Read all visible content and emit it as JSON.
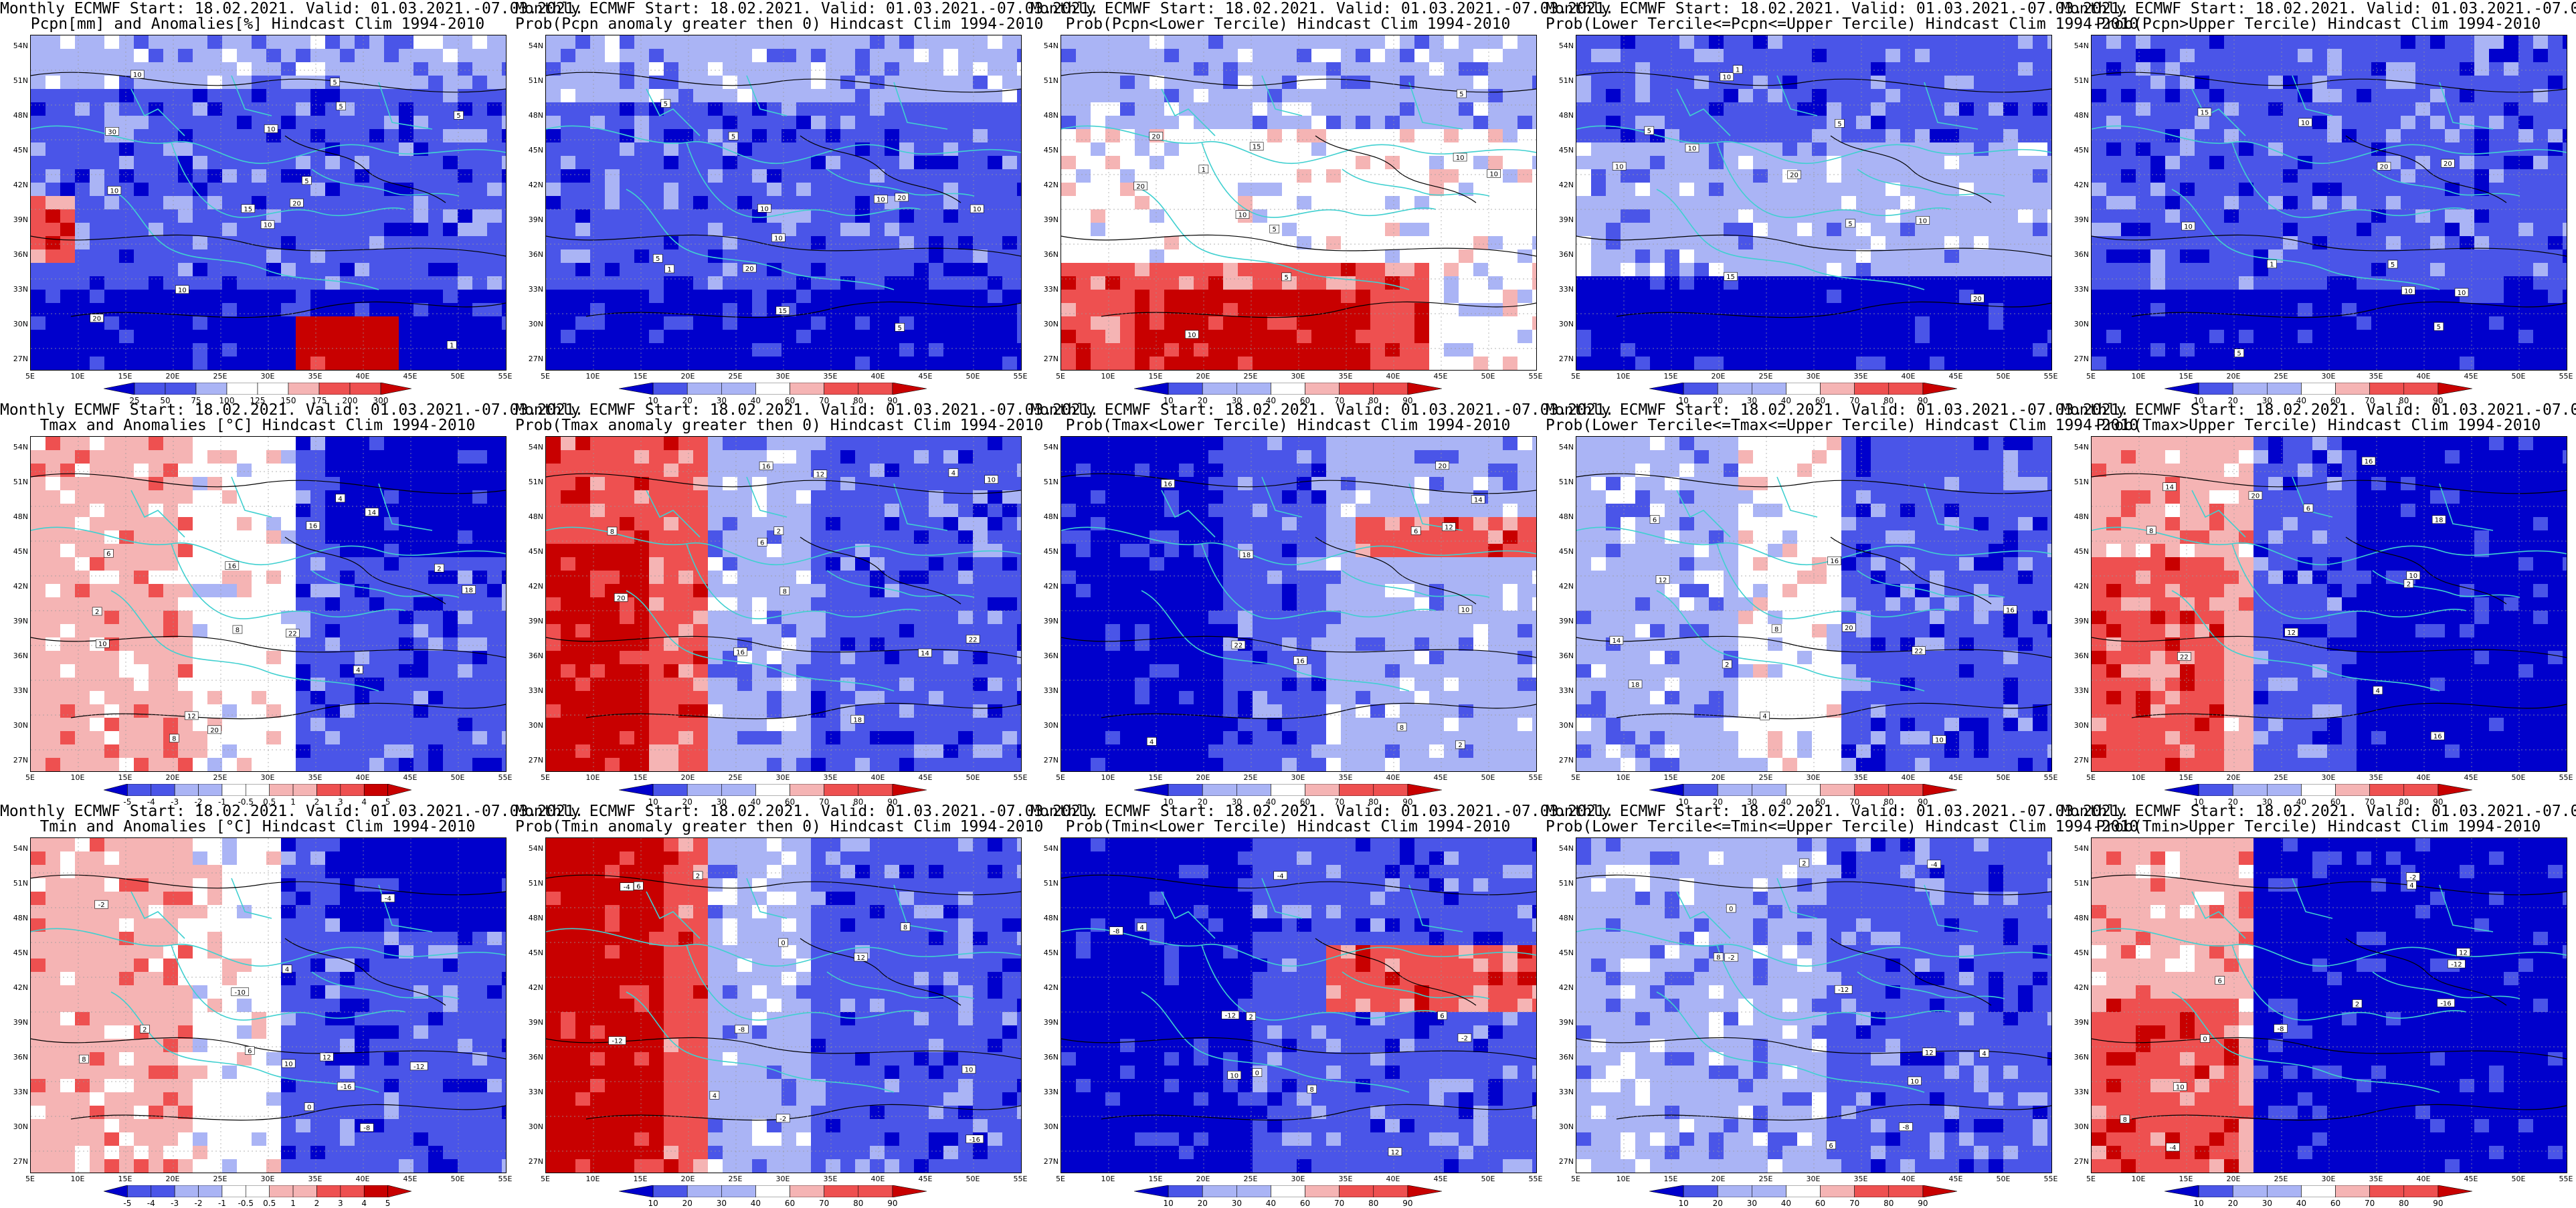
{
  "header": "Monthly ECMWF Start: 18.02.2021. Valid: 01.03.2021.-07.03.2021.",
  "lat_labels": [
    "54N",
    "51N",
    "48N",
    "45N",
    "42N",
    "39N",
    "36N",
    "33N",
    "30N",
    "27N"
  ],
  "lon_labels": [
    "5E",
    "10E",
    "15E",
    "20E",
    "25E",
    "30E",
    "35E",
    "40E",
    "45E",
    "50E",
    "55E"
  ],
  "anom_pcp_ticks": [
    "25",
    "50",
    "75",
    "100",
    "125",
    "150",
    "175",
    "200",
    "300"
  ],
  "anom_temp_ticks": [
    "-5",
    "-4",
    "-3",
    "-2",
    "-1",
    "-0.5",
    "0.5",
    "1",
    "2",
    "3",
    "4",
    "5"
  ],
  "prob_ticks": [
    "10",
    "20",
    "30",
    "40",
    "60",
    "70",
    "80",
    "90"
  ],
  "colors": {
    "deep_blue": "#0000cc",
    "mid_blue": "#4a55e8",
    "light_blue": "#aab4f5",
    "white": "#ffffff",
    "light_red": "#f5b4b4",
    "mid_red": "#ee5050",
    "deep_red": "#c80000",
    "coast": "#40d0d0",
    "contour": "#000000"
  },
  "panels": [
    {
      "subtitle": "Pcpn[mm] and Anomalies[%] Hindcast Clim 1994-2010",
      "scale": "anom_pcp",
      "pattern": "pcp_anom",
      "box_labels": [
        "10",
        "30",
        "15",
        "20",
        "5",
        "10",
        "5",
        "10",
        "5",
        "20",
        "10",
        "1",
        "10",
        "5"
      ]
    },
    {
      "subtitle": "Prob(Pcpn anomaly greater then 0) Hindcast Clim 1994-2010",
      "scale": "prob",
      "pattern": "pcp_pos",
      "box_labels": [
        "10",
        "5",
        "20",
        "10",
        "15",
        "5",
        "10",
        "5",
        "20",
        "10",
        "1",
        "5"
      ]
    },
    {
      "subtitle": "Prob(Pcpn<Lower Tercile) Hindcast Clim 1994-2010",
      "scale": "prob",
      "pattern": "pcp_low",
      "box_labels": [
        "10",
        "5",
        "20",
        "10",
        "15",
        "5",
        "10",
        "5",
        "20",
        "10",
        "1"
      ]
    },
    {
      "subtitle": "Prob(Lower Tercile<=Pcpn<=Upper Tercile) Hindcast Clim 1994-2010",
      "scale": "prob",
      "pattern": "pcp_mid",
      "box_labels": [
        "10",
        "5",
        "20",
        "10",
        "15",
        "5",
        "10",
        "5",
        "20",
        "10",
        "1"
      ]
    },
    {
      "subtitle": "Prob(Pcpn>Upper Tercile) Hindcast Clim 1994-2010",
      "scale": "prob",
      "pattern": "pcp_up",
      "box_labels": [
        "10",
        "5",
        "20",
        "10",
        "15",
        "5",
        "10",
        "5",
        "20",
        "10",
        "1"
      ]
    },
    {
      "subtitle": "Tmax and Anomalies [°C] Hindcast Clim 1994-2010",
      "scale": "anom_temp",
      "pattern": "tmax_anom",
      "box_labels": [
        "4",
        "8",
        "6",
        "2",
        "10",
        "14",
        "16",
        "18",
        "20",
        "22",
        "16",
        "12",
        "8",
        "4",
        "2"
      ]
    },
    {
      "subtitle": "Prob(Tmax anomaly greater then 0) Hindcast Clim 1994-2010",
      "scale": "prob",
      "pattern": "tmax_pos",
      "box_labels": [
        "4",
        "8",
        "6",
        "2",
        "10",
        "14",
        "16",
        "18",
        "20",
        "22",
        "16",
        "12",
        "8"
      ]
    },
    {
      "subtitle": "Prob(Tmax<Lower Tercile) Hindcast Clim 1994-2010",
      "scale": "prob",
      "pattern": "tmax_low",
      "box_labels": [
        "4",
        "8",
        "6",
        "2",
        "10",
        "14",
        "16",
        "18",
        "20",
        "22",
        "16",
        "12"
      ]
    },
    {
      "subtitle": "Prob(Lower Tercile<=Tmax<=Upper Tercile) Hindcast Clim 1994-2010",
      "scale": "prob",
      "pattern": "tmax_mid",
      "box_labels": [
        "4",
        "8",
        "6",
        "2",
        "10",
        "14",
        "16",
        "18",
        "20",
        "22",
        "16",
        "12"
      ]
    },
    {
      "subtitle": "Prob(Tmax>Upper Tercile) Hindcast Clim 1994-2010",
      "scale": "prob",
      "pattern": "tmax_up",
      "box_labels": [
        "4",
        "8",
        "6",
        "2",
        "10",
        "14",
        "16",
        "18",
        "20",
        "22",
        "16",
        "12"
      ]
    },
    {
      "subtitle": "Tmin and Anomalies [°C] Hindcast Clim 1994-2010",
      "scale": "anom_temp",
      "pattern": "tmin_anom",
      "box_labels": [
        "-12",
        "-8",
        "-4",
        "-2",
        "0",
        "2",
        "4",
        "6",
        "8",
        "10",
        "12",
        "-16",
        "-10"
      ]
    },
    {
      "subtitle": "Prob(Tmin anomaly greater then 0) Hindcast Clim 1994-2010",
      "scale": "prob",
      "pattern": "tmin_pos",
      "box_labels": [
        "-12",
        "-8",
        "-4",
        "-2",
        "0",
        "2",
        "4",
        "6",
        "8",
        "10",
        "12",
        "-16"
      ]
    },
    {
      "subtitle": "Prob(Tmin<Lower Tercile) Hindcast Clim 1994-2010",
      "scale": "prob",
      "pattern": "tmin_low",
      "box_labels": [
        "-12",
        "-8",
        "-4",
        "-2",
        "0",
        "2",
        "4",
        "6",
        "8",
        "10",
        "12"
      ]
    },
    {
      "subtitle": "Prob(Lower Tercile<=Tmin<=Upper Tercile) Hindcast Clim 1994-2010",
      "scale": "prob",
      "pattern": "tmin_mid",
      "box_labels": [
        "-12",
        "-8",
        "-4",
        "-2",
        "0",
        "2",
        "4",
        "6",
        "8",
        "10",
        "12"
      ]
    },
    {
      "subtitle": "Prob(Tmin>Upper Tercile) Hindcast Clim 1994-2010",
      "scale": "prob",
      "pattern": "tmin_up",
      "box_labels": [
        "-12",
        "-8",
        "-4",
        "-2",
        "0",
        "2",
        "4",
        "6",
        "8",
        "10",
        "12",
        "-16"
      ]
    }
  ]
}
